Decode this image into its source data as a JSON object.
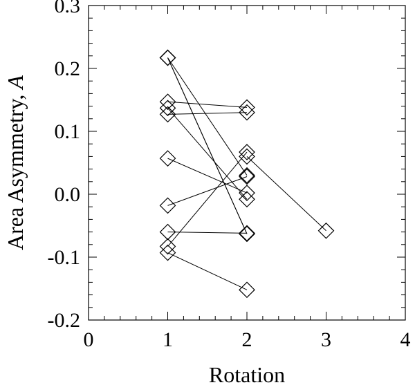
{
  "chart_data": {
    "type": "scatter",
    "xlabel": "Rotation",
    "ylabel_main": "Area Asymmetry, ",
    "ylabel_italic": "A",
    "xlim": [
      0,
      4
    ],
    "ylim": [
      -0.2,
      0.3
    ],
    "x_ticks": [
      0,
      1,
      2,
      3,
      4
    ],
    "x_tick_labels": [
      "0",
      "1",
      "2",
      "3",
      "4"
    ],
    "y_ticks": [
      -0.2,
      -0.1,
      0.0,
      0.1,
      0.2,
      0.3
    ],
    "y_tick_labels": [
      "-0.2",
      "-0.1",
      "0.0",
      "0.1",
      "0.2",
      "0.3"
    ],
    "marker": "open-diamond",
    "tracks": [
      [
        [
          1,
          0.217
        ],
        [
          2,
          0.03
        ]
      ],
      [
        [
          1,
          0.217
        ],
        [
          2,
          -0.063
        ]
      ],
      [
        [
          1,
          0.217
        ],
        [
          2,
          -0.063
        ]
      ],
      [
        [
          1,
          0.147
        ],
        [
          2,
          0.138
        ]
      ],
      [
        [
          1,
          0.137
        ],
        [
          2,
          -0.008
        ]
      ],
      [
        [
          1,
          0.127
        ],
        [
          2,
          0.13
        ]
      ],
      [
        [
          1,
          0.057
        ],
        [
          2,
          0.002
        ]
      ],
      [
        [
          1,
          -0.018
        ],
        [
          2,
          0.028
        ]
      ],
      [
        [
          1,
          -0.06
        ],
        [
          2,
          -0.062
        ]
      ],
      [
        [
          1,
          -0.083
        ],
        [
          2,
          0.067
        ]
      ],
      [
        [
          1,
          -0.093
        ],
        [
          2,
          -0.152
        ]
      ],
      [
        [
          2,
          0.06
        ],
        [
          3,
          -0.058
        ]
      ]
    ]
  }
}
